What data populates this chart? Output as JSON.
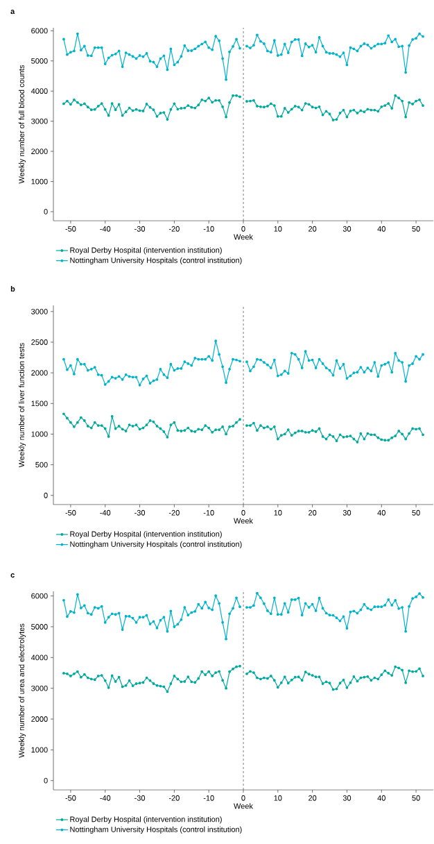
{
  "chart_data": [
    {
      "type": "line",
      "title": "a",
      "xlabel": "Week",
      "ylabel": "Weekly number of full blood counts",
      "x": [
        -52,
        -51,
        -50,
        -49,
        -48,
        -47,
        -46,
        -45,
        -44,
        -43,
        -42,
        -41,
        -40,
        -39,
        -38,
        -37,
        -36,
        -35,
        -34,
        -33,
        -32,
        -31,
        -30,
        -29,
        -28,
        -27,
        -26,
        -25,
        -24,
        -23,
        -22,
        -21,
        -20,
        -19,
        -18,
        -17,
        -16,
        -15,
        -14,
        -13,
        -12,
        -11,
        -10,
        -9,
        -8,
        -7,
        -6,
        -5,
        -4,
        -3,
        -2,
        -1,
        0,
        1,
        2,
        3,
        4,
        5,
        6,
        7,
        8,
        9,
        10,
        11,
        12,
        13,
        14,
        15,
        16,
        17,
        18,
        19,
        20,
        21,
        22,
        23,
        24,
        25,
        26,
        27,
        28,
        29,
        30,
        31,
        32,
        33,
        34,
        35,
        36,
        37,
        38,
        39,
        40,
        41,
        42,
        43,
        44,
        45,
        46,
        47,
        48,
        49,
        50,
        51,
        52
      ],
      "series": [
        {
          "name": "Royal Derby Hospital (intervention institution)",
          "color": "#00a99e",
          "values": [
            3580,
            3670,
            3560,
            3710,
            3620,
            3540,
            3580,
            3470,
            3380,
            3390,
            3500,
            3590,
            3390,
            3190,
            3590,
            3380,
            3560,
            3190,
            3310,
            3440,
            3350,
            3390,
            3350,
            3340,
            3570,
            3460,
            3380,
            3160,
            3270,
            3290,
            3060,
            3390,
            3580,
            3400,
            3430,
            3440,
            3520,
            3460,
            3440,
            3540,
            3710,
            3670,
            3770,
            3630,
            3690,
            3690,
            3480,
            3140,
            3620,
            3850,
            3850,
            3810,
            null,
            3660,
            3670,
            3690,
            3500,
            3480,
            3470,
            3500,
            3580,
            3520,
            3160,
            3160,
            3430,
            3290,
            3400,
            3500,
            3470,
            3370,
            3590,
            3560,
            3470,
            3440,
            3480,
            3210,
            3330,
            3240,
            3040,
            3060,
            3270,
            3370,
            3140,
            3340,
            3370,
            3270,
            3350,
            3310,
            3400,
            3370,
            3370,
            3330,
            3480,
            3520,
            3590,
            3430,
            3850,
            3770,
            3670,
            3140,
            3620,
            3570,
            3670,
            3710,
            3520
          ]
        },
        {
          "name": "Nottingham University Hospitals (control institution)",
          "color": "#00b3cc",
          "values": [
            5720,
            5210,
            5290,
            5330,
            5900,
            5360,
            5490,
            5180,
            5170,
            5440,
            5440,
            5440,
            4900,
            5100,
            5190,
            5230,
            5330,
            4810,
            5270,
            5210,
            5150,
            5080,
            5180,
            5140,
            5250,
            4990,
            4960,
            4810,
            5080,
            5170,
            4710,
            5400,
            4870,
            4960,
            5150,
            5510,
            5340,
            5340,
            5400,
            5490,
            5560,
            5630,
            5440,
            5370,
            5820,
            5670,
            5080,
            4380,
            5300,
            5480,
            5720,
            5420,
            null,
            5490,
            5430,
            5520,
            5860,
            5650,
            5570,
            5330,
            5290,
            5680,
            5180,
            5210,
            5560,
            5270,
            5630,
            5710,
            5710,
            5170,
            5570,
            5460,
            5520,
            5290,
            5780,
            5490,
            5290,
            5250,
            5250,
            5210,
            5140,
            5270,
            4870,
            5440,
            5400,
            5330,
            5490,
            5570,
            5530,
            5420,
            5490,
            5560,
            5560,
            5590,
            5840,
            5630,
            5720,
            5470,
            5490,
            4620,
            5510,
            5710,
            5750,
            5900,
            5810
          ]
        }
      ],
      "xlim": [
        -55,
        55
      ],
      "ylim": [
        -300,
        6100
      ],
      "xticks": [
        -50,
        -40,
        -30,
        -20,
        -10,
        0,
        10,
        20,
        30,
        40,
        50
      ],
      "yticks": [
        0,
        1000,
        2000,
        3000,
        4000,
        5000,
        6000
      ],
      "marker": "circle",
      "legend": "bottom",
      "ref_lines": [
        {
          "axis": "x",
          "value": 0,
          "color": "#404040",
          "line_style": "dashed"
        }
      ]
    },
    {
      "type": "line",
      "title": "b",
      "xlabel": "Week",
      "ylabel": "Weekly number of liver function tests",
      "x": [
        -52,
        -51,
        -50,
        -49,
        -48,
        -47,
        -46,
        -45,
        -44,
        -43,
        -42,
        -41,
        -40,
        -39,
        -38,
        -37,
        -36,
        -35,
        -34,
        -33,
        -32,
        -31,
        -30,
        -29,
        -28,
        -27,
        -26,
        -25,
        -24,
        -23,
        -22,
        -21,
        -20,
        -19,
        -18,
        -17,
        -16,
        -15,
        -14,
        -13,
        -12,
        -11,
        -10,
        -9,
        -8,
        -7,
        -6,
        -5,
        -4,
        -3,
        -2,
        -1,
        0,
        1,
        2,
        3,
        4,
        5,
        6,
        7,
        8,
        9,
        10,
        11,
        12,
        13,
        14,
        15,
        16,
        17,
        18,
        19,
        20,
        21,
        22,
        23,
        24,
        25,
        26,
        27,
        28,
        29,
        30,
        31,
        32,
        33,
        34,
        35,
        36,
        37,
        38,
        39,
        40,
        41,
        42,
        43,
        44,
        45,
        46,
        47,
        48,
        49,
        50,
        51,
        52
      ],
      "series": [
        {
          "name": "Royal Derby Hospital (intervention institution)",
          "color": "#00a99e",
          "values": [
            1330,
            1260,
            1190,
            1120,
            1190,
            1270,
            1220,
            1130,
            1100,
            1190,
            1140,
            1140,
            1090,
            960,
            1290,
            1090,
            1130,
            1080,
            1050,
            1150,
            1130,
            1150,
            1080,
            1100,
            1150,
            1220,
            1200,
            1130,
            1090,
            1040,
            950,
            1150,
            1190,
            1060,
            1050,
            1060,
            1100,
            1050,
            1040,
            1080,
            1070,
            1140,
            1100,
            1030,
            1070,
            1070,
            1120,
            1000,
            1120,
            1130,
            1190,
            1240,
            null,
            1140,
            1140,
            1180,
            1060,
            1140,
            1100,
            1120,
            1080,
            1120,
            920,
            980,
            1000,
            1070,
            980,
            1020,
            1050,
            1050,
            1030,
            1030,
            1060,
            1040,
            1090,
            960,
            920,
            990,
            960,
            890,
            990,
            950,
            960,
            970,
            920,
            870,
            1010,
            920,
            1010,
            990,
            990,
            940,
            910,
            900,
            900,
            940,
            970,
            1050,
            1000,
            920,
            1010,
            1090,
            1080,
            1090,
            990
          ]
        },
        {
          "name": "Nottingham University Hospitals (control institution)",
          "color": "#00b3cc",
          "values": [
            2220,
            2050,
            2120,
            1980,
            2220,
            2140,
            2140,
            2040,
            2060,
            2090,
            1970,
            1960,
            1810,
            1860,
            1930,
            1910,
            1940,
            1890,
            1970,
            1940,
            1930,
            1930,
            1800,
            1900,
            1950,
            1830,
            1870,
            1890,
            2060,
            1970,
            1920,
            2140,
            2040,
            2070,
            2070,
            2180,
            2150,
            2120,
            2240,
            2220,
            2220,
            2220,
            2270,
            2200,
            2520,
            2300,
            2100,
            1840,
            2060,
            2220,
            2210,
            2190,
            null,
            2180,
            2030,
            2100,
            2220,
            2210,
            2170,
            2130,
            2080,
            2210,
            1950,
            1970,
            2030,
            1990,
            2320,
            2300,
            2220,
            2080,
            2350,
            2200,
            2210,
            2080,
            2220,
            2150,
            2080,
            2040,
            1960,
            2200,
            2070,
            2140,
            1910,
            1950,
            2000,
            2010,
            2090,
            2010,
            2080,
            2030,
            2170,
            1940,
            2120,
            2140,
            2170,
            2010,
            2320,
            2200,
            2170,
            1860,
            2120,
            2150,
            2270,
            2220,
            2300
          ]
        }
      ],
      "xlim": [
        -55,
        55
      ],
      "ylim": [
        -150,
        3100
      ],
      "xticks": [
        -50,
        -40,
        -30,
        -20,
        -10,
        0,
        10,
        20,
        30,
        40,
        50
      ],
      "yticks": [
        0,
        500,
        1000,
        1500,
        2000,
        2500,
        3000
      ],
      "marker": "circle",
      "legend": "bottom",
      "ref_lines": [
        {
          "axis": "x",
          "value": 0,
          "color": "#404040",
          "line_style": "dashed"
        }
      ]
    },
    {
      "type": "line",
      "title": "c",
      "xlabel": "Week",
      "ylabel": "Weekly number of urea and electrolytes",
      "x": [
        -52,
        -51,
        -50,
        -49,
        -48,
        -47,
        -46,
        -45,
        -44,
        -43,
        -42,
        -41,
        -40,
        -39,
        -38,
        -37,
        -36,
        -35,
        -34,
        -33,
        -32,
        -31,
        -30,
        -29,
        -28,
        -27,
        -26,
        -25,
        -24,
        -23,
        -22,
        -21,
        -20,
        -19,
        -18,
        -17,
        -16,
        -15,
        -14,
        -13,
        -12,
        -11,
        -10,
        -9,
        -8,
        -7,
        -6,
        -5,
        -4,
        -3,
        -2,
        -1,
        0,
        1,
        2,
        3,
        4,
        5,
        6,
        7,
        8,
        9,
        10,
        11,
        12,
        13,
        14,
        15,
        16,
        17,
        18,
        19,
        20,
        21,
        22,
        23,
        24,
        25,
        26,
        27,
        28,
        29,
        30,
        31,
        32,
        33,
        34,
        35,
        36,
        37,
        38,
        39,
        40,
        41,
        42,
        43,
        44,
        45,
        46,
        47,
        48,
        49,
        50,
        51,
        52
      ],
      "series": [
        {
          "name": "Royal Derby Hospital (intervention institution)",
          "color": "#00a99e",
          "values": [
            3490,
            3470,
            3400,
            3470,
            3540,
            3360,
            3450,
            3340,
            3300,
            3280,
            3400,
            3420,
            3250,
            3020,
            3410,
            3220,
            3360,
            3050,
            3090,
            3250,
            3080,
            3150,
            3170,
            3190,
            3340,
            3250,
            3150,
            3090,
            3070,
            3050,
            2890,
            3150,
            3400,
            3300,
            3210,
            3220,
            3370,
            3210,
            3190,
            3320,
            3540,
            3440,
            3540,
            3400,
            3510,
            3550,
            3260,
            3000,
            3540,
            3630,
            3700,
            3720,
            null,
            3470,
            3550,
            3510,
            3340,
            3300,
            3340,
            3320,
            3400,
            3260,
            3030,
            3180,
            3370,
            3170,
            3270,
            3360,
            3370,
            3260,
            3530,
            3460,
            3420,
            3370,
            3370,
            3150,
            3210,
            3170,
            2960,
            2980,
            3170,
            3270,
            3020,
            3180,
            3380,
            3230,
            3340,
            3360,
            3380,
            3260,
            3340,
            3300,
            3440,
            3570,
            3490,
            3420,
            3700,
            3660,
            3590,
            3180,
            3570,
            3540,
            3550,
            3640,
            3400
          ]
        },
        {
          "name": "Nottingham University Hospitals (control institution)",
          "color": "#00b3cc",
          "values": [
            5860,
            5330,
            5500,
            5460,
            6050,
            5610,
            5690,
            5440,
            5400,
            5630,
            5600,
            5660,
            5140,
            5310,
            5420,
            5400,
            5440,
            4910,
            5340,
            5340,
            5280,
            5140,
            5310,
            5310,
            5370,
            5090,
            5170,
            4960,
            5210,
            5310,
            4850,
            5510,
            5000,
            5080,
            5230,
            5630,
            5380,
            5460,
            5500,
            5730,
            5600,
            5800,
            5610,
            5550,
            6010,
            5760,
            5140,
            4600,
            5420,
            5600,
            5940,
            5650,
            null,
            5630,
            5630,
            5690,
            6090,
            5940,
            5750,
            5520,
            5420,
            5940,
            5400,
            5400,
            5760,
            5470,
            5880,
            5880,
            5930,
            5380,
            5760,
            5630,
            5730,
            5520,
            5930,
            5600,
            5440,
            5380,
            5370,
            5290,
            5190,
            5330,
            4950,
            5480,
            5510,
            5440,
            5550,
            5730,
            5600,
            5550,
            5650,
            5650,
            5650,
            5700,
            5880,
            5700,
            5860,
            5590,
            5630,
            4850,
            5660,
            5920,
            5970,
            6080,
            5950
          ]
        }
      ],
      "xlim": [
        -55,
        55
      ],
      "ylim": [
        -300,
        6150
      ],
      "xticks": [
        -50,
        -40,
        -30,
        -20,
        -10,
        0,
        10,
        20,
        30,
        40,
        50
      ],
      "yticks": [
        0,
        1000,
        2000,
        3000,
        4000,
        5000,
        6000
      ],
      "marker": "circle",
      "legend": "bottom",
      "ref_lines": [
        {
          "axis": "x",
          "value": 0,
          "color": "#404040",
          "line_style": "dashed"
        }
      ]
    }
  ]
}
